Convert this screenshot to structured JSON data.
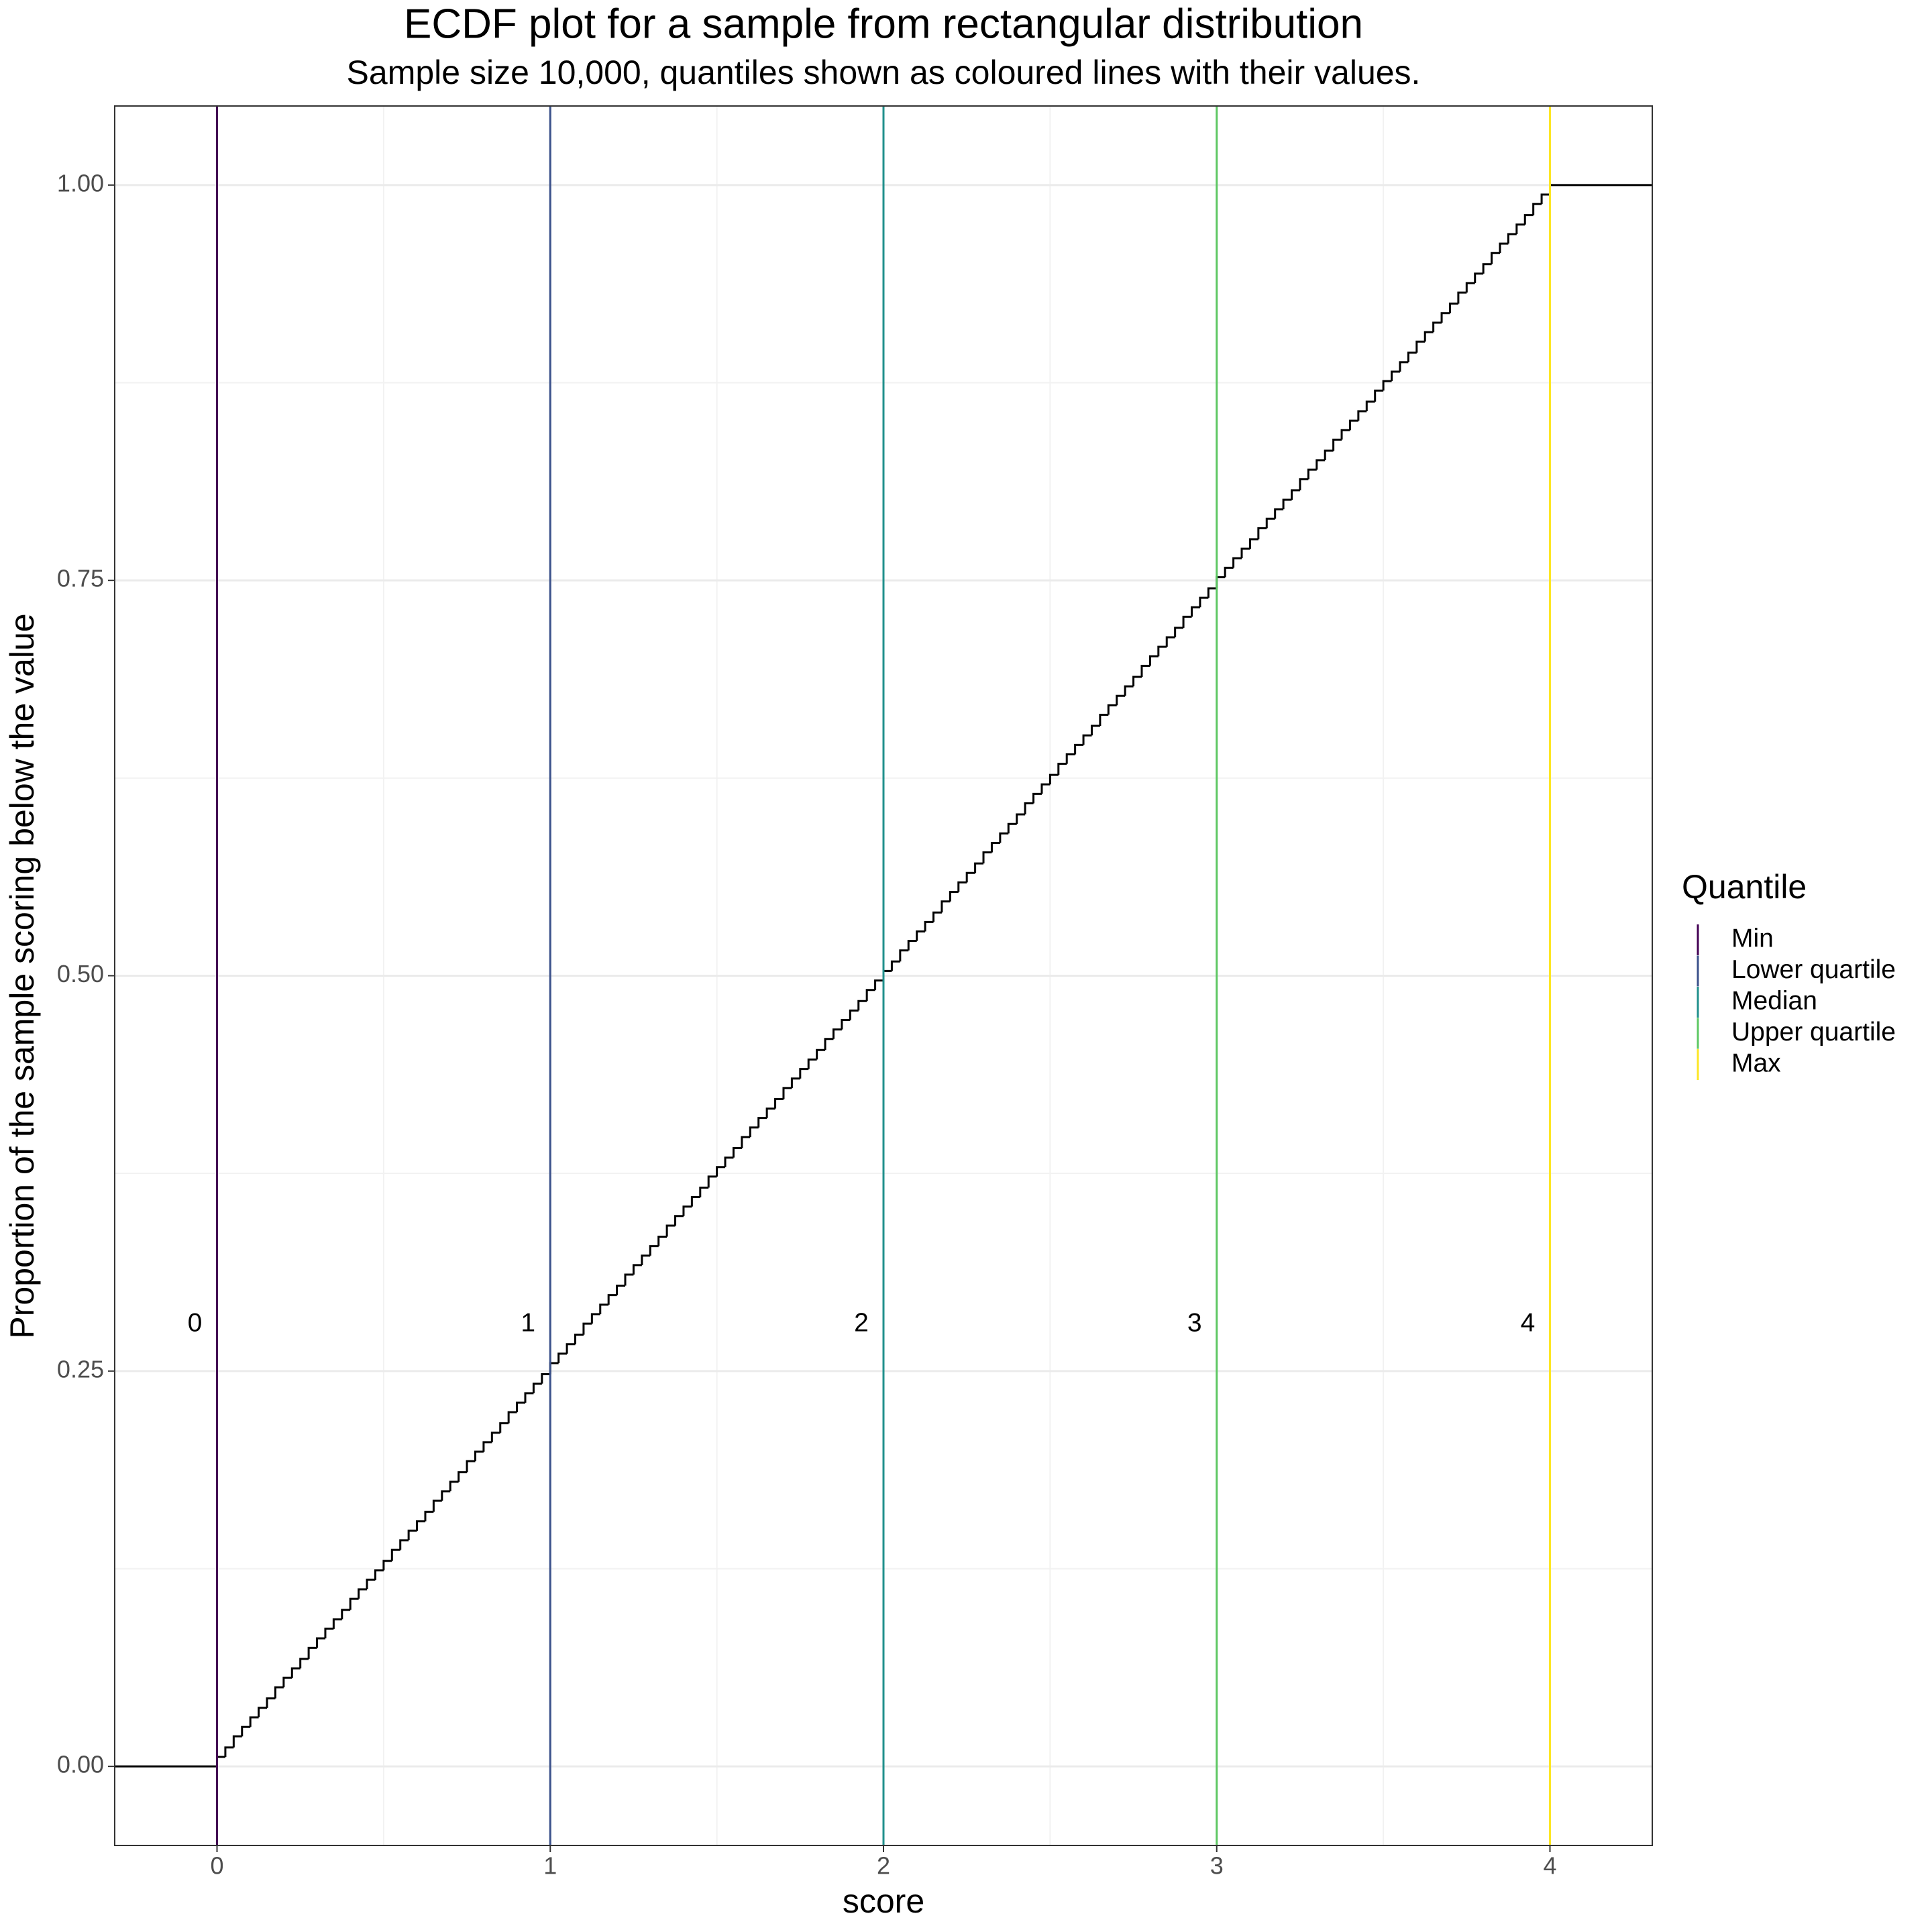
{
  "chart_data": {
    "type": "line",
    "step": "hv",
    "title": "ECDF plot for a sample from rectangular distribution",
    "subtitle": "Sample size 10,000, quantiles shown as coloured lines with their values.",
    "x_label": "score",
    "y_label": "Proportion of the sample scoring below the value",
    "color": "#000000",
    "grid": true,
    "xlim": [
      -0.307,
      4.307
    ],
    "ylim": [
      -0.05,
      1.05
    ],
    "xticks": [
      0,
      1,
      2,
      3,
      4
    ],
    "yticks": [
      {
        "value": 0,
        "label": "0.00"
      },
      0.25,
      {
        "value": 0.5,
        "label": "0.50"
      },
      0.75,
      {
        "value": 1,
        "label": "1.00"
      }
    ],
    "x": [
      -0.307,
      0,
      0.025,
      0.05,
      0.075,
      0.1,
      0.125,
      0.15,
      0.175,
      0.2,
      0.225,
      0.25,
      0.275,
      0.3,
      0.325,
      0.35,
      0.375,
      0.4,
      0.425,
      0.45,
      0.475,
      0.5,
      0.525,
      0.55,
      0.575,
      0.6,
      0.625,
      0.65,
      0.675,
      0.7,
      0.725,
      0.75,
      0.775,
      0.8,
      0.825,
      0.85,
      0.875,
      0.9,
      0.925,
      0.95,
      0.975,
      1,
      1.025,
      1.05,
      1.075,
      1.1,
      1.125,
      1.15,
      1.175,
      1.2,
      1.225,
      1.25,
      1.275,
      1.3,
      1.325,
      1.35,
      1.375,
      1.4,
      1.425,
      1.45,
      1.475,
      1.5,
      1.525,
      1.55,
      1.575,
      1.6,
      1.625,
      1.65,
      1.675,
      1.7,
      1.725,
      1.75,
      1.775,
      1.8,
      1.825,
      1.85,
      1.875,
      1.9,
      1.925,
      1.95,
      1.975,
      2,
      2.025,
      2.05,
      2.075,
      2.1,
      2.125,
      2.15,
      2.175,
      2.2,
      2.225,
      2.25,
      2.275,
      2.3,
      2.325,
      2.35,
      2.375,
      2.4,
      2.425,
      2.45,
      2.475,
      2.5,
      2.525,
      2.55,
      2.575,
      2.6,
      2.625,
      2.65,
      2.675,
      2.7,
      2.725,
      2.75,
      2.775,
      2.8,
      2.825,
      2.85,
      2.875,
      2.9,
      2.925,
      2.95,
      2.975,
      3,
      3.025,
      3.05,
      3.075,
      3.1,
      3.125,
      3.15,
      3.175,
      3.2,
      3.225,
      3.25,
      3.275,
      3.3,
      3.325,
      3.35,
      3.375,
      3.4,
      3.425,
      3.45,
      3.475,
      3.5,
      3.525,
      3.55,
      3.575,
      3.6,
      3.625,
      3.65,
      3.675,
      3.7,
      3.725,
      3.75,
      3.775,
      3.8,
      3.825,
      3.85,
      3.875,
      3.9,
      3.925,
      3.95,
      3.975,
      4,
      4.307
    ],
    "values": [
      0,
      0.006,
      0.012,
      0.019,
      0.025,
      0.031,
      0.037,
      0.043,
      0.05,
      0.056,
      0.062,
      0.068,
      0.075,
      0.081,
      0.087,
      0.093,
      0.099,
      0.106,
      0.112,
      0.118,
      0.124,
      0.13,
      0.137,
      0.143,
      0.149,
      0.155,
      0.161,
      0.168,
      0.174,
      0.18,
      0.186,
      0.193,
      0.199,
      0.205,
      0.211,
      0.217,
      0.224,
      0.23,
      0.236,
      0.242,
      0.248,
      0.255,
      0.261,
      0.267,
      0.273,
      0.28,
      0.286,
      0.292,
      0.298,
      0.304,
      0.311,
      0.317,
      0.323,
      0.329,
      0.335,
      0.342,
      0.348,
      0.354,
      0.36,
      0.366,
      0.373,
      0.379,
      0.385,
      0.391,
      0.398,
      0.404,
      0.41,
      0.416,
      0.422,
      0.429,
      0.435,
      0.441,
      0.447,
      0.453,
      0.46,
      0.466,
      0.472,
      0.478,
      0.484,
      0.491,
      0.497,
      0.503,
      0.509,
      0.516,
      0.522,
      0.528,
      0.534,
      0.54,
      0.547,
      0.553,
      0.559,
      0.565,
      0.571,
      0.578,
      0.584,
      0.59,
      0.596,
      0.602,
      0.609,
      0.615,
      0.621,
      0.627,
      0.634,
      0.64,
      0.646,
      0.652,
      0.658,
      0.665,
      0.671,
      0.677,
      0.683,
      0.689,
      0.696,
      0.702,
      0.708,
      0.714,
      0.72,
      0.727,
      0.733,
      0.739,
      0.745,
      0.752,
      0.758,
      0.764,
      0.77,
      0.776,
      0.783,
      0.789,
      0.795,
      0.801,
      0.807,
      0.814,
      0.82,
      0.826,
      0.832,
      0.839,
      0.845,
      0.851,
      0.857,
      0.863,
      0.87,
      0.876,
      0.882,
      0.888,
      0.894,
      0.901,
      0.907,
      0.913,
      0.919,
      0.925,
      0.932,
      0.938,
      0.944,
      0.95,
      0.957,
      0.963,
      0.969,
      0.975,
      0.981,
      0.988,
      0.994,
      1,
      1
    ],
    "quantiles": {
      "title": "Quantile",
      "items": [
        {
          "name": "Min",
          "value": 0,
          "color": "#440154"
        },
        {
          "name": "Lower quartile",
          "value": 1,
          "color": "#3b528b"
        },
        {
          "name": "Median",
          "value": 2,
          "color": "#21908c"
        },
        {
          "name": "Upper quartile",
          "value": 3,
          "color": "#5dc863"
        },
        {
          "name": "Max",
          "value": 4,
          "color": "#fde725"
        }
      ]
    }
  }
}
